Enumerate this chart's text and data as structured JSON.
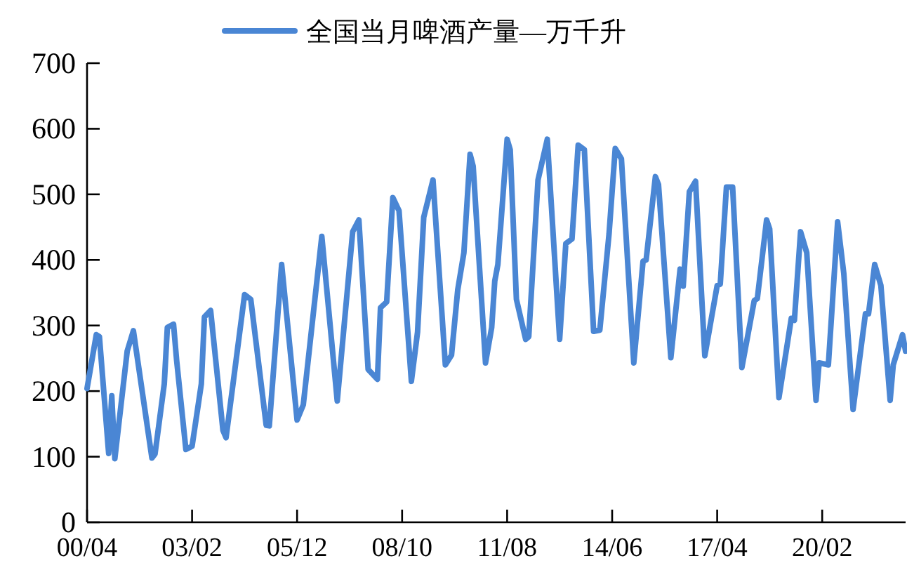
{
  "chart_data": {
    "type": "line",
    "legend": "top",
    "marker": "none",
    "line_style": "solid",
    "grid": false,
    "x": [
      "2000-04",
      "2000-07",
      "2000-08",
      "2000-11",
      "2000-12",
      "2001-01",
      "2001-05",
      "2001-07",
      "2002-01",
      "2002-02",
      "2002-05",
      "2002-06",
      "2002-08",
      "2002-09",
      "2002-12",
      "2003-02",
      "2003-05",
      "2003-06",
      "2003-08",
      "2003-12",
      "2004-01",
      "2004-07",
      "2004-09",
      "2005-02",
      "2005-03",
      "2005-07",
      "2005-12",
      "2006-02",
      "2006-08",
      "2007-01",
      "2007-06",
      "2007-08",
      "2007-11",
      "2008-02",
      "2008-03",
      "2008-05",
      "2008-07",
      "2008-09",
      "2009-01",
      "2009-03",
      "2009-05",
      "2009-08",
      "2009-12",
      "2010-02",
      "2010-04",
      "2010-06",
      "2010-08",
      "2010-09",
      "2011-01",
      "2011-03",
      "2011-04",
      "2011-05",
      "2011-08",
      "2011-09",
      "2011-11",
      "2012-02",
      "2012-03",
      "2012-06",
      "2012-09",
      "2013-01",
      "2013-03",
      "2013-05",
      "2013-07",
      "2013-09",
      "2013-12",
      "2014-02",
      "2014-05",
      "2014-07",
      "2014-09",
      "2015-01",
      "2015-04",
      "2015-05",
      "2015-08",
      "2015-09",
      "2016-01",
      "2016-04",
      "2016-05",
      "2016-07",
      "2016-09",
      "2016-12",
      "2017-04",
      "2017-05",
      "2017-07",
      "2017-09",
      "2017-12",
      "2018-04",
      "2018-05",
      "2018-08",
      "2018-09",
      "2018-12",
      "2019-04",
      "2019-05",
      "2019-07",
      "2019-09",
      "2019-12",
      "2020-01",
      "2020-04",
      "2020-07",
      "2020-09",
      "2020-12",
      "2021-04",
      "2021-05",
      "2021-07",
      "2021-09",
      "2021-12",
      "2022-01",
      "2022-04",
      "2022-05"
    ],
    "series": [
      {
        "name": "全国当月啤酒产量—万千升",
        "color": "#4a86d4",
        "values": [
          204,
          286,
          283,
          105,
          193,
          97,
          261,
          292,
          98,
          104,
          211,
          297,
          302,
          247,
          111,
          116,
          211,
          313,
          323,
          140,
          129,
          347,
          340,
          148,
          147,
          393,
          156,
          179,
          436,
          185,
          443,
          461,
          233,
          218,
          327,
          336,
          495,
          475,
          215,
          290,
          465,
          522,
          240,
          255,
          354,
          411,
          561,
          543,
          243,
          297,
          368,
          393,
          584,
          568,
          340,
          279,
          283,
          522,
          584,
          279,
          425,
          432,
          575,
          568,
          291,
          293,
          440,
          570,
          554,
          243,
          398,
          400,
          527,
          515,
          251,
          386,
          360,
          504,
          520,
          254,
          361,
          363,
          511,
          511,
          236,
          338,
          341,
          461,
          447,
          190,
          311,
          308,
          443,
          411,
          186,
          243,
          240,
          458,
          379,
          172,
          318,
          318,
          393,
          361,
          186,
          240,
          286,
          261
        ]
      }
    ],
    "xlim": [
      "2000-04",
      "2022-05"
    ],
    "xticks": [
      {
        "value": "2000-04",
        "label": "00/04"
      },
      {
        "value": "2003-02",
        "label": "03/02"
      },
      {
        "value": "2005-12",
        "label": "05/12"
      },
      {
        "value": "2008-10",
        "label": "08/10"
      },
      {
        "value": "2011-08",
        "label": "11/08"
      },
      {
        "value": "2014-06",
        "label": "14/06"
      },
      {
        "value": "2017-04",
        "label": "17/04"
      },
      {
        "value": "2020-02",
        "label": "20/02"
      }
    ],
    "ylim": [
      0,
      700
    ],
    "yticks": [
      0,
      100,
      200,
      300,
      400,
      500,
      600,
      700
    ]
  }
}
